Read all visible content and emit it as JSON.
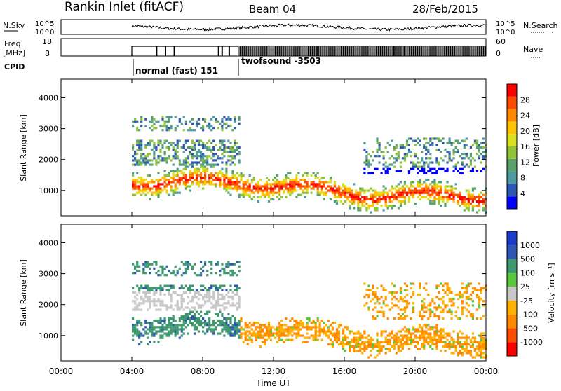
{
  "header": {
    "station": "Rankin Inlet (fitACF)",
    "beam": "Beam 04",
    "date": "28/Feb/2015"
  },
  "top_panels": {
    "nsky": {
      "label": "N.Sky",
      "ticks": [
        "10^5",
        "10^0"
      ]
    },
    "nsearch": {
      "label": "N.Search",
      "ticks": [
        "10^5",
        "10^0"
      ]
    },
    "freq": {
      "label1": "Freq.",
      "label2": "[MHz]",
      "ticks": [
        "18",
        "8"
      ]
    },
    "nave": {
      "label": "Nave",
      "ticks": [
        "60",
        "0"
      ]
    },
    "cpid": {
      "label": "CPID",
      "modes": [
        "normal (fast) 151",
        "twofsound -3503"
      ]
    }
  },
  "chart_data": [
    {
      "type": "heatmap",
      "name": "power",
      "ylabel": "Slant Range [km]",
      "xlabel": "Time UT",
      "x_ticks": [
        "00:00",
        "04:00",
        "08:00",
        "12:00",
        "16:00",
        "20:00",
        "00:00"
      ],
      "x_range_hours": [
        0,
        24
      ],
      "y_ticks": [
        1000,
        2000,
        3000,
        4000
      ],
      "y_range_km": [
        180,
        4600
      ],
      "colorbar": {
        "label": "Power [dB]",
        "ticks": [
          "28",
          "24",
          "20",
          "16",
          "12",
          "8",
          "4"
        ],
        "colors": [
          "#0000ff",
          "#2e56b5",
          "#4d9aa1",
          "#5aa06a",
          "#8fc43a",
          "#d8e020",
          "#ffc400",
          "#ff8a00",
          "#ff4b00",
          "#ff0000"
        ]
      },
      "echo_bands": [
        {
          "t_start": 4.0,
          "t_end": 24.0,
          "r_min": 600,
          "r_max": 1600,
          "level": "high"
        },
        {
          "t_start": 4.0,
          "t_end": 10.0,
          "r_min": 1800,
          "r_max": 2600,
          "level": "mid"
        },
        {
          "t_start": 4.0,
          "t_end": 10.0,
          "r_min": 2900,
          "r_max": 3400,
          "level": "low"
        }
      ]
    },
    {
      "type": "heatmap",
      "name": "velocity",
      "ylabel": "Slant Range [km]",
      "xlabel": "Time UT",
      "x_ticks": [
        "00:00",
        "04:00",
        "08:00",
        "12:00",
        "16:00",
        "20:00",
        "00:00"
      ],
      "x_range_hours": [
        0,
        24
      ],
      "y_ticks": [
        1000,
        2000,
        3000,
        4000
      ],
      "y_range_km": [
        180,
        4600
      ],
      "colorbar": {
        "label": "Velocity  [m s⁻¹]",
        "ticks": [
          "1000",
          "500",
          "100",
          "25",
          "-25",
          "-100",
          "-500",
          "-1000"
        ],
        "colors": [
          "#ff0000",
          "#ff4b00",
          "#ff8a00",
          "#ffb000",
          "#c8c8c8",
          "#5ac83c",
          "#3e9a6e",
          "#2e56b5",
          "#1a3cc8"
        ]
      }
    }
  ]
}
